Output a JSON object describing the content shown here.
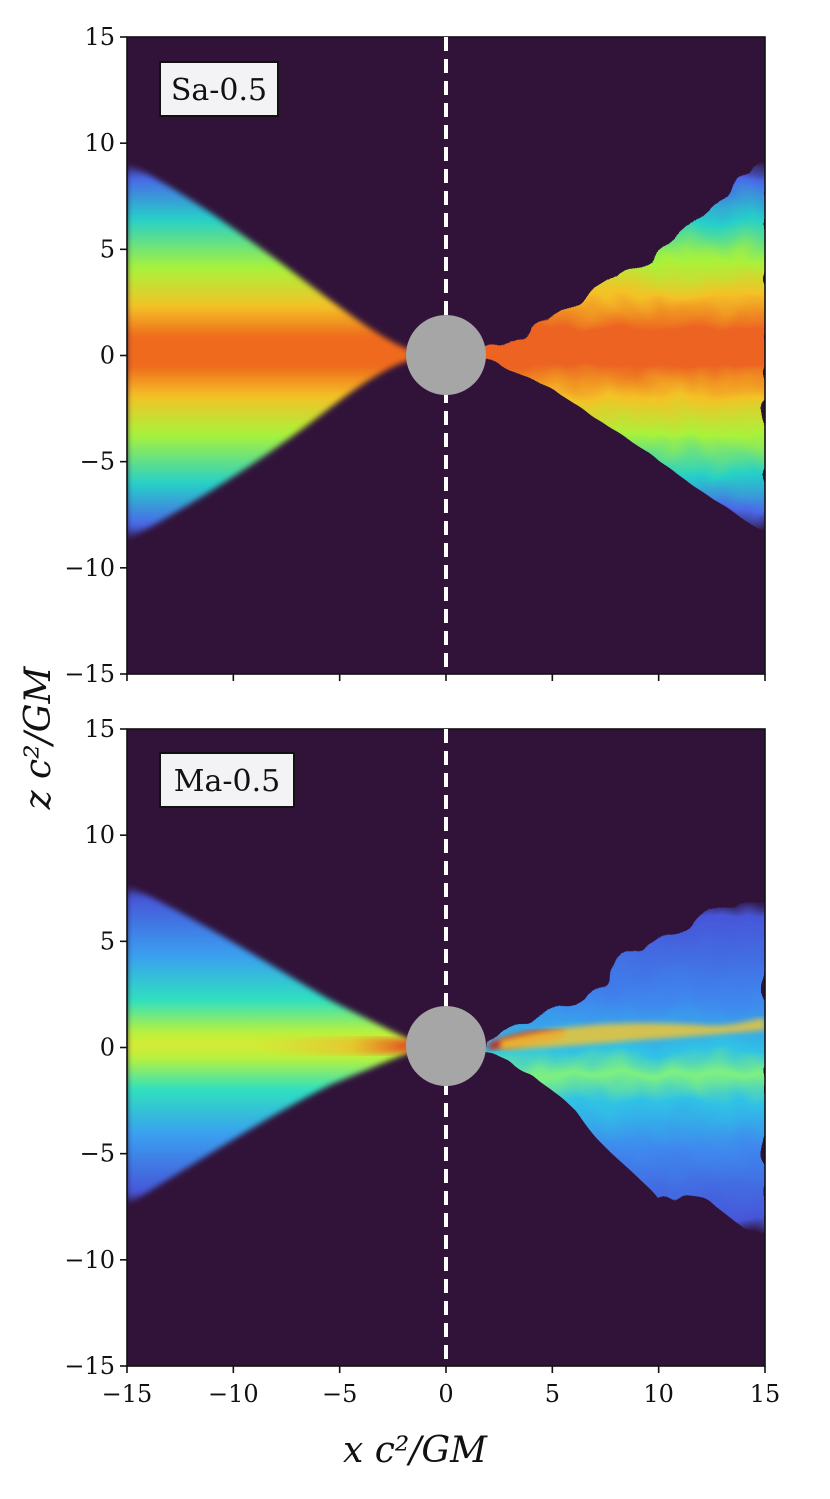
{
  "chart_data": {
    "type": "heatmap",
    "xlabel": "x c²/GM",
    "ylabel": "z c²/GM",
    "xlim": [
      -15,
      15
    ],
    "ylim": [
      -15,
      15
    ],
    "xticks": [
      "−15",
      "−10",
      "−5",
      "0",
      "5",
      "10",
      "15"
    ],
    "yticks": [
      "15",
      "10",
      "5",
      "0",
      "−5",
      "−10",
      "−15"
    ],
    "xtick_values": [
      -15,
      -10,
      -5,
      0,
      5,
      10,
      15
    ],
    "ytick_values": [
      15,
      10,
      5,
      0,
      -5,
      -10,
      -15
    ],
    "black_hole_radius": 1.9,
    "divider_x": 0,
    "colors": {
      "background": "#31133a",
      "black_hole": "#a6a6a6",
      "divider": "#ffffff"
    },
    "panels": [
      {
        "label": "Sa-0.5",
        "description_model": "smooth",
        "left_half_opening": [
          {
            "x": -15,
            "z_top": 9.0,
            "z_bot": -8.6
          },
          {
            "x": -10,
            "z_top": 6.3,
            "z_bot": -6.0
          },
          {
            "x": -5,
            "z_top": 2.2,
            "z_bot": -2.2
          },
          {
            "x": -2,
            "z_top": 0.3,
            "z_bot": -0.3
          }
        ],
        "right_half_opening": [
          {
            "x": 2,
            "z_top": 0.4,
            "z_bot": -0.4
          },
          {
            "x": 5,
            "z_top": 2.0,
            "z_bot": -1.8
          },
          {
            "x": 10,
            "z_top": 5.6,
            "z_bot": -4.8
          },
          {
            "x": 15,
            "z_top": 9.0,
            "z_bot": -8.3
          }
        ]
      },
      {
        "label": "Ma-0.5",
        "description_model": "turbulent",
        "left_half_opening": [
          {
            "x": -15,
            "z_top": 7.6,
            "z_bot": -7.4
          },
          {
            "x": -10,
            "z_top": 4.6,
            "z_bot": -4.5
          },
          {
            "x": -5,
            "z_top": 1.3,
            "z_bot": -1.6
          },
          {
            "x": -2,
            "z_top": 0.3,
            "z_bot": -0.3
          }
        ],
        "right_half_opening": [
          {
            "x": 2,
            "z_top": 0.5,
            "z_bot": -0.5
          },
          {
            "x": 5,
            "z_top": 2.2,
            "z_bot": -2.8
          },
          {
            "x": 10,
            "z_top": 6.5,
            "z_bot": -6.5
          },
          {
            "x": 15,
            "z_top": 7.0,
            "z_bot": -8.8
          }
        ]
      }
    ]
  }
}
